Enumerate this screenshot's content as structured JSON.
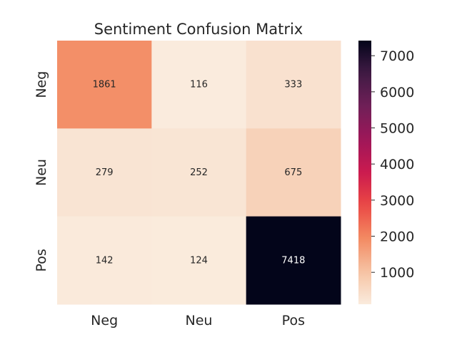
{
  "chart_data": {
    "type": "heatmap",
    "title": "Sentiment Confusion Matrix",
    "xlabel": "",
    "ylabel": "",
    "x_categories": [
      "Neg",
      "Neu",
      "Pos"
    ],
    "y_categories": [
      "Neg",
      "Neu",
      "Pos"
    ],
    "values": [
      [
        1861,
        116,
        333
      ],
      [
        279,
        252,
        675
      ],
      [
        142,
        124,
        7418
      ]
    ],
    "colorbar": {
      "range": [
        116,
        7418
      ],
      "ticks": [
        1000,
        2000,
        3000,
        4000,
        5000,
        6000,
        7000
      ],
      "tick_labels": [
        "1000",
        "2000",
        "3000",
        "4000",
        "5000",
        "6000",
        "7000"
      ],
      "colormap": "rocket_r"
    },
    "grid": false,
    "legend": "colorbar-right"
  }
}
